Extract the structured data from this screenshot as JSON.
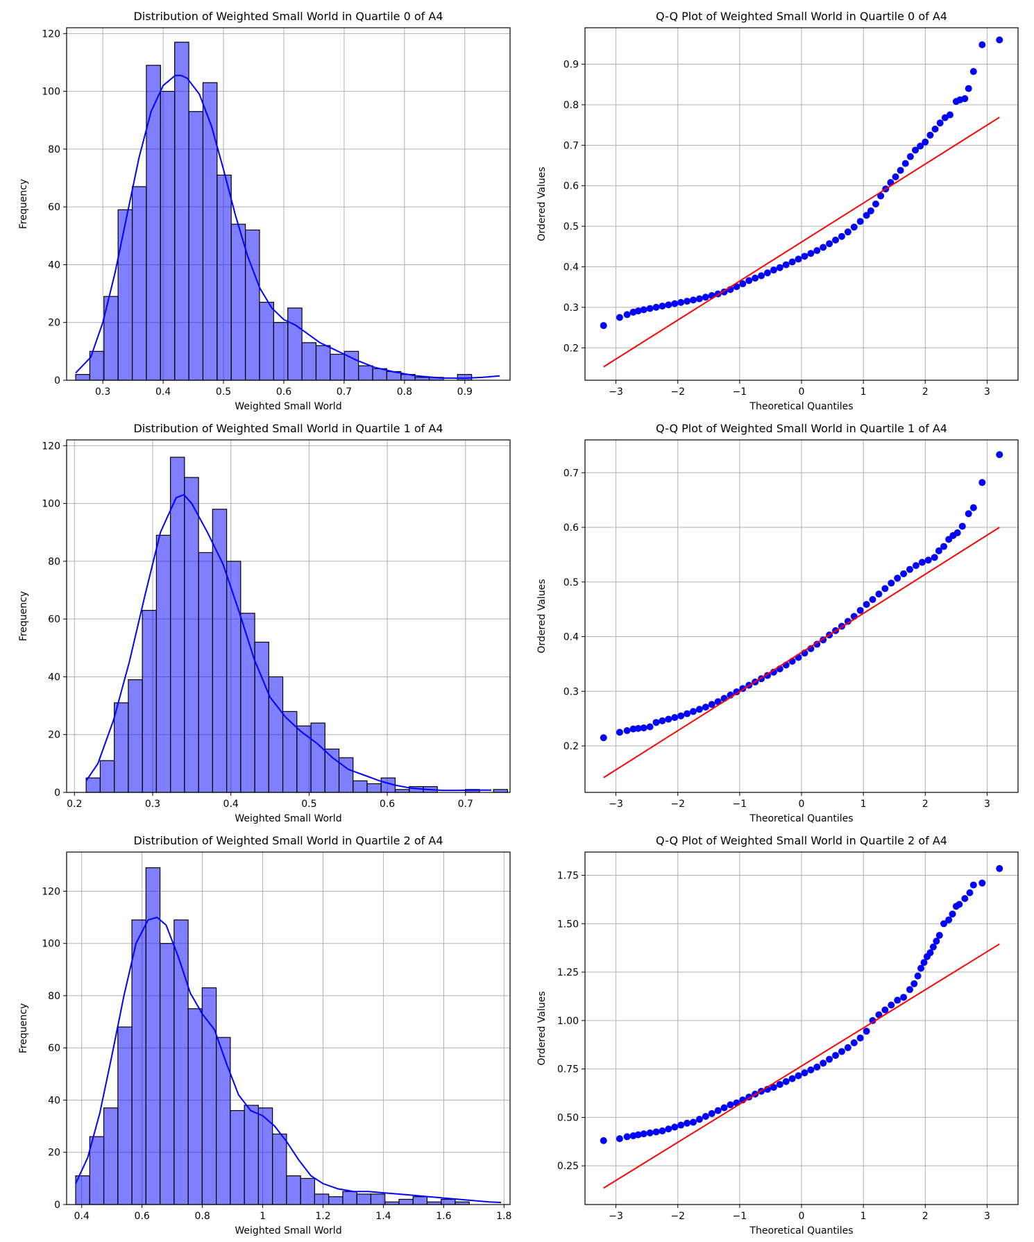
{
  "chart_data": [
    {
      "type": "bar",
      "kind": "histogram",
      "title": "Distribution of Weighted Small World in Quartile 0 of A4",
      "xlabel": "Weighted Small World",
      "ylabel": "Frequency",
      "xlim": [
        0.24,
        0.975
      ],
      "ylim": [
        0,
        122
      ],
      "xticks": [
        0.3,
        0.4,
        0.5,
        0.6,
        0.7,
        0.8,
        0.9
      ],
      "yticks": [
        0,
        20,
        40,
        60,
        80,
        100,
        120
      ],
      "bin_start": 0.255,
      "bin_width": 0.02344,
      "values": [
        2,
        10,
        29,
        59,
        67,
        109,
        100,
        117,
        93,
        103,
        71,
        54,
        52,
        27,
        20,
        25,
        13,
        12,
        9,
        10,
        5,
        4,
        3,
        2,
        1,
        1,
        0,
        2
      ],
      "kde_x": [
        0.255,
        0.28,
        0.3,
        0.32,
        0.34,
        0.36,
        0.38,
        0.4,
        0.42,
        0.43,
        0.44,
        0.46,
        0.48,
        0.5,
        0.52,
        0.54,
        0.56,
        0.58,
        0.6,
        0.62,
        0.64,
        0.66,
        0.68,
        0.7,
        0.72,
        0.75,
        0.78,
        0.82,
        0.86,
        0.9,
        0.93,
        0.958
      ],
      "kde_y": [
        2.5,
        8,
        20,
        37,
        57,
        77,
        93,
        102,
        105.5,
        105.5,
        104.5,
        99,
        88,
        73,
        57,
        43,
        32,
        25,
        21,
        19,
        16,
        13,
        11,
        9,
        7,
        4.5,
        3,
        1.5,
        0.8,
        0.7,
        1,
        1.5
      ],
      "grid": true
    },
    {
      "type": "scatter",
      "kind": "qq",
      "title": "Q-Q Plot of Weighted Small World in Quartile 0 of A4",
      "xlabel": "Theoretical Quantiles",
      "ylabel": "Ordered Values",
      "xlim": [
        -3.5,
        3.5
      ],
      "ylim": [
        0.12,
        0.99
      ],
      "xticks": [
        -3,
        -2,
        -1,
        0,
        1,
        2,
        3
      ],
      "yticks": [
        0.2,
        0.3,
        0.4,
        0.5,
        0.6,
        0.7,
        0.8,
        0.9
      ],
      "x": [
        -3.2,
        -2.94,
        -2.82,
        -2.72,
        -2.64,
        -2.55,
        -2.45,
        -2.35,
        -2.25,
        -2.15,
        -2.05,
        -1.95,
        -1.85,
        -1.75,
        -1.65,
        -1.55,
        -1.45,
        -1.35,
        -1.25,
        -1.15,
        -1.05,
        -0.95,
        -0.85,
        -0.75,
        -0.65,
        -0.55,
        -0.45,
        -0.35,
        -0.25,
        -0.15,
        -0.05,
        0.05,
        0.15,
        0.25,
        0.35,
        0.45,
        0.55,
        0.65,
        0.75,
        0.85,
        0.95,
        1.05,
        1.12,
        1.2,
        1.28,
        1.36,
        1.44,
        1.52,
        1.6,
        1.68,
        1.76,
        1.84,
        1.92,
        2.0,
        2.08,
        2.16,
        2.24,
        2.32,
        2.4,
        2.5,
        2.56,
        2.64,
        2.7,
        2.78,
        2.92,
        3.2
      ],
      "y": [
        0.255,
        0.275,
        0.282,
        0.288,
        0.291,
        0.294,
        0.297,
        0.3,
        0.303,
        0.306,
        0.309,
        0.312,
        0.315,
        0.318,
        0.321,
        0.325,
        0.329,
        0.333,
        0.338,
        0.344,
        0.351,
        0.358,
        0.366,
        0.372,
        0.378,
        0.385,
        0.392,
        0.398,
        0.405,
        0.412,
        0.419,
        0.426,
        0.433,
        0.44,
        0.448,
        0.457,
        0.466,
        0.475,
        0.486,
        0.498,
        0.512,
        0.527,
        0.538,
        0.555,
        0.575,
        0.592,
        0.608,
        0.622,
        0.638,
        0.655,
        0.672,
        0.688,
        0.698,
        0.708,
        0.725,
        0.74,
        0.755,
        0.768,
        0.775,
        0.808,
        0.812,
        0.815,
        0.84,
        0.882,
        0.948,
        0.96
      ],
      "fit_line": {
        "x": [
          -3.2,
          3.2
        ],
        "y": [
          0.153,
          0.769
        ]
      },
      "grid": true
    },
    {
      "type": "bar",
      "kind": "histogram",
      "title": "Distribution of Weighted Small World in Quartile 1 of A4",
      "xlabel": "Weighted Small World",
      "ylabel": "Frequency",
      "xlim": [
        0.19,
        0.757
      ],
      "ylim": [
        0,
        122
      ],
      "xticks": [
        0.2,
        0.3,
        0.4,
        0.5,
        0.6,
        0.7
      ],
      "yticks": [
        0,
        20,
        40,
        60,
        80,
        100,
        120
      ],
      "bin_start": 0.215,
      "bin_width": 0.01796,
      "values": [
        5,
        11,
        31,
        39,
        63,
        89,
        116,
        109,
        83,
        98,
        80,
        62,
        52,
        40,
        28,
        23,
        24,
        15,
        12,
        4,
        3,
        5,
        1,
        2,
        2,
        0,
        0,
        1,
        0,
        1
      ],
      "kde_x": [
        0.215,
        0.23,
        0.25,
        0.27,
        0.29,
        0.31,
        0.33,
        0.34,
        0.35,
        0.37,
        0.39,
        0.41,
        0.43,
        0.45,
        0.47,
        0.49,
        0.51,
        0.53,
        0.55,
        0.57,
        0.59,
        0.61,
        0.63,
        0.65,
        0.67,
        0.69,
        0.71,
        0.733
      ],
      "kde_y": [
        4,
        10,
        25,
        45,
        68,
        90,
        102,
        103,
        100,
        90,
        79,
        63,
        46,
        33,
        26,
        21,
        17,
        12,
        8,
        6,
        4,
        2.5,
        1.5,
        1,
        0.7,
        0.7,
        0.8,
        0.8
      ],
      "grid": true
    },
    {
      "type": "scatter",
      "kind": "qq",
      "title": "Q-Q Plot of Weighted Small World in Quartile 1 of A4",
      "xlabel": "Theoretical Quantiles",
      "ylabel": "Ordered Values",
      "xlim": [
        -3.5,
        3.5
      ],
      "ylim": [
        0.115,
        0.76
      ],
      "xticks": [
        -3,
        -2,
        -1,
        0,
        1,
        2,
        3
      ],
      "yticks": [
        0.2,
        0.3,
        0.4,
        0.5,
        0.6,
        0.7
      ],
      "x": [
        -3.2,
        -2.94,
        -2.82,
        -2.72,
        -2.64,
        -2.55,
        -2.45,
        -2.35,
        -2.25,
        -2.15,
        -2.05,
        -1.95,
        -1.85,
        -1.75,
        -1.65,
        -1.55,
        -1.45,
        -1.35,
        -1.25,
        -1.15,
        -1.05,
        -0.95,
        -0.85,
        -0.75,
        -0.65,
        -0.55,
        -0.45,
        -0.35,
        -0.25,
        -0.15,
        -0.05,
        0.05,
        0.15,
        0.25,
        0.35,
        0.45,
        0.55,
        0.65,
        0.75,
        0.85,
        0.95,
        1.05,
        1.15,
        1.25,
        1.35,
        1.45,
        1.55,
        1.65,
        1.75,
        1.85,
        1.95,
        2.05,
        2.15,
        2.22,
        2.3,
        2.38,
        2.45,
        2.52,
        2.6,
        2.7,
        2.78,
        2.92,
        3.2
      ],
      "y": [
        0.215,
        0.225,
        0.228,
        0.231,
        0.232,
        0.233,
        0.235,
        0.243,
        0.246,
        0.249,
        0.252,
        0.255,
        0.259,
        0.263,
        0.267,
        0.271,
        0.276,
        0.281,
        0.287,
        0.293,
        0.299,
        0.305,
        0.311,
        0.317,
        0.323,
        0.329,
        0.335,
        0.341,
        0.348,
        0.355,
        0.362,
        0.37,
        0.378,
        0.386,
        0.394,
        0.403,
        0.411,
        0.419,
        0.428,
        0.437,
        0.448,
        0.459,
        0.468,
        0.478,
        0.488,
        0.498,
        0.507,
        0.515,
        0.523,
        0.53,
        0.536,
        0.54,
        0.545,
        0.557,
        0.565,
        0.578,
        0.585,
        0.59,
        0.602,
        0.625,
        0.636,
        0.682,
        0.733
      ],
      "fit_line": {
        "x": [
          -3.2,
          3.2
        ],
        "y": [
          0.142,
          0.6
        ]
      },
      "grid": true
    },
    {
      "type": "bar",
      "kind": "histogram",
      "title": "Distribution of Weighted Small World in Quartile 2 of A4",
      "xlabel": "Weighted Small World",
      "ylabel": "Frequency",
      "xlim": [
        0.35,
        1.82
      ],
      "ylim": [
        0,
        135
      ],
      "xticks": [
        0.4,
        0.6,
        0.8,
        1.0,
        1.2,
        1.4,
        1.6,
        1.8
      ],
      "yticks": [
        0,
        20,
        40,
        60,
        80,
        100,
        120
      ],
      "bin_start": 0.38,
      "bin_width": 0.0466,
      "values": [
        11,
        26,
        37,
        68,
        109,
        129,
        100,
        109,
        75,
        83,
        64,
        36,
        38,
        37,
        27,
        11,
        10,
        4,
        3,
        5,
        4,
        4,
        1,
        2,
        3,
        1,
        2,
        1,
        0,
        0
      ],
      "kde_x": [
        0.38,
        0.42,
        0.46,
        0.5,
        0.54,
        0.58,
        0.62,
        0.65,
        0.68,
        0.72,
        0.76,
        0.8,
        0.84,
        0.88,
        0.92,
        0.96,
        1.0,
        1.04,
        1.08,
        1.12,
        1.16,
        1.2,
        1.25,
        1.3,
        1.35,
        1.4,
        1.45,
        1.5,
        1.55,
        1.6,
        1.65,
        1.7,
        1.75,
        1.79
      ],
      "kde_y": [
        8,
        18,
        35,
        57,
        80,
        100,
        109,
        110,
        107,
        95,
        81,
        73,
        67,
        54,
        42,
        36,
        34,
        30,
        24,
        17,
        11,
        8,
        6,
        5,
        5,
        4.5,
        4,
        3.5,
        3,
        2.5,
        2,
        1.5,
        1,
        0.8
      ],
      "grid": true
    },
    {
      "type": "scatter",
      "kind": "qq",
      "title": "Q-Q Plot of Weighted Small World in Quartile 2 of A4",
      "xlabel": "Theoretical Quantiles",
      "ylabel": "Ordered Values",
      "xlim": [
        -3.5,
        3.5
      ],
      "ylim": [
        0.05,
        1.87
      ],
      "xticks": [
        -3,
        -2,
        -1,
        0,
        1,
        2,
        3
      ],
      "yticks": [
        0.25,
        0.5,
        0.75,
        1.0,
        1.25,
        1.5,
        1.75
      ],
      "ytick_labels": [
        "0.25",
        "0.50",
        "0.75",
        "1.00",
        "1.25",
        "1.50",
        "1.75"
      ],
      "x": [
        -3.2,
        -2.94,
        -2.82,
        -2.72,
        -2.64,
        -2.55,
        -2.45,
        -2.35,
        -2.25,
        -2.15,
        -2.05,
        -1.95,
        -1.85,
        -1.75,
        -1.65,
        -1.55,
        -1.45,
        -1.35,
        -1.25,
        -1.15,
        -1.05,
        -0.95,
        -0.85,
        -0.75,
        -0.65,
        -0.55,
        -0.45,
        -0.35,
        -0.25,
        -0.15,
        -0.05,
        0.05,
        0.15,
        0.25,
        0.35,
        0.45,
        0.55,
        0.65,
        0.75,
        0.85,
        0.95,
        1.05,
        1.15,
        1.25,
        1.35,
        1.45,
        1.55,
        1.65,
        1.75,
        1.82,
        1.88,
        1.93,
        1.98,
        2.03,
        2.08,
        2.13,
        2.18,
        2.23,
        2.3,
        2.38,
        2.44,
        2.5,
        2.55,
        2.64,
        2.72,
        2.78,
        2.92,
        3.2
      ],
      "y": [
        0.38,
        0.39,
        0.4,
        0.405,
        0.41,
        0.415,
        0.42,
        0.425,
        0.43,
        0.44,
        0.45,
        0.46,
        0.47,
        0.475,
        0.49,
        0.505,
        0.52,
        0.535,
        0.55,
        0.565,
        0.575,
        0.59,
        0.605,
        0.62,
        0.635,
        0.645,
        0.655,
        0.67,
        0.685,
        0.7,
        0.715,
        0.73,
        0.745,
        0.76,
        0.78,
        0.8,
        0.82,
        0.84,
        0.86,
        0.885,
        0.91,
        0.945,
        1.0,
        1.03,
        1.055,
        1.08,
        1.105,
        1.12,
        1.16,
        1.19,
        1.23,
        1.27,
        1.3,
        1.33,
        1.35,
        1.38,
        1.41,
        1.44,
        1.5,
        1.52,
        1.55,
        1.59,
        1.6,
        1.63,
        1.66,
        1.7,
        1.71,
        1.785
      ],
      "fit_line": {
        "x": [
          -3.2,
          3.2
        ],
        "y": [
          0.135,
          1.395
        ]
      },
      "grid": true
    }
  ]
}
